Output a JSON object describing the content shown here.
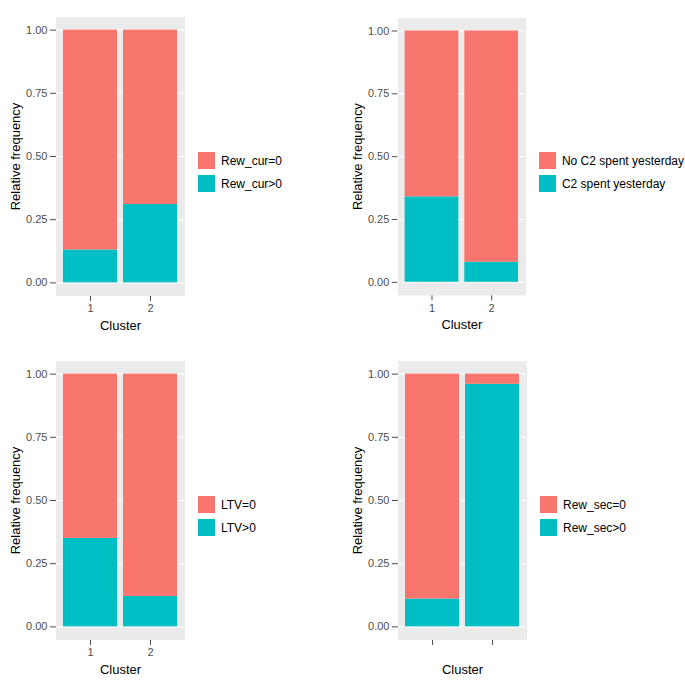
{
  "chart_data": [
    {
      "type": "bar",
      "stacked": true,
      "grid": true,
      "legend": "right",
      "x_label": "Cluster",
      "y_label": "Relative frequency",
      "categories": [
        "1",
        "2"
      ],
      "series": [
        {
          "name": "Rew_cur=0",
          "color": "#F8766D",
          "values": [
            0.87,
            0.69
          ]
        },
        {
          "name": "Rew_cur>0",
          "color": "#00BFC4",
          "values": [
            0.13,
            0.31
          ]
        }
      ],
      "ylim": [
        -0.05,
        1.05
      ],
      "yticks": [
        {
          "value": 0,
          "label": "0.00"
        },
        {
          "value": 0.25,
          "label": "0.25"
        },
        {
          "value": 0.5,
          "label": "0.50"
        },
        {
          "value": 0.75,
          "label": "0.75"
        },
        {
          "value": 1,
          "label": "1.00"
        }
      ]
    },
    {
      "type": "bar",
      "stacked": true,
      "grid": true,
      "legend": "right",
      "x_label": "Cluster",
      "y_label": "Relative frequency",
      "categories": [
        "1",
        "2"
      ],
      "series": [
        {
          "name": "No C2 spent yesterday",
          "color": "#F8766D",
          "values": [
            0.66,
            0.92
          ]
        },
        {
          "name": "C2 spent yesterday",
          "color": "#00BFC4",
          "values": [
            0.34,
            0.08
          ]
        }
      ],
      "ylim": [
        -0.05,
        1.05
      ],
      "yticks": [
        {
          "value": 0,
          "label": "0.00"
        },
        {
          "value": 0.25,
          "label": "0.25"
        },
        {
          "value": 0.5,
          "label": "0.50"
        },
        {
          "value": 0.75,
          "label": "0.75"
        },
        {
          "value": 1,
          "label": "1.00"
        }
      ]
    },
    {
      "type": "bar",
      "stacked": true,
      "grid": true,
      "legend": "right",
      "x_label": "Cluster",
      "y_label": "Relative frequency",
      "categories": [
        "1",
        "2"
      ],
      "series": [
        {
          "name": "LTV=0",
          "color": "#F8766D",
          "values": [
            0.65,
            0.88
          ]
        },
        {
          "name": "LTV>0",
          "color": "#00BFC4",
          "values": [
            0.35,
            0.12
          ]
        }
      ],
      "ylim": [
        -0.05,
        1.05
      ],
      "yticks": [
        {
          "value": 0,
          "label": "0.00"
        },
        {
          "value": 0.25,
          "label": "0.25"
        },
        {
          "value": 0.5,
          "label": "0.50"
        },
        {
          "value": 0.75,
          "label": "0.75"
        },
        {
          "value": 1,
          "label": "1.00"
        }
      ]
    },
    {
      "type": "bar",
      "stacked": true,
      "grid": true,
      "legend": "right",
      "x_label": "Cluster",
      "y_label": "Relative frequency",
      "categories": [
        null,
        null
      ],
      "series": [
        {
          "name": "Rew_sec=0",
          "color": "#F8766D",
          "values": [
            0.89,
            0.04
          ]
        },
        {
          "name": "Rew_sec>0",
          "color": "#00BFC4",
          "values": [
            0.11,
            0.96
          ]
        }
      ],
      "ylim": [
        -0.05,
        1.05
      ],
      "yticks": [
        {
          "value": 0,
          "label": "0.00"
        },
        {
          "value": 0.25,
          "label": "0.25"
        },
        {
          "value": 0.5,
          "label": "0.50"
        },
        {
          "value": 0.75,
          "label": "0.75"
        },
        {
          "value": 1,
          "label": "1.00"
        }
      ]
    }
  ]
}
